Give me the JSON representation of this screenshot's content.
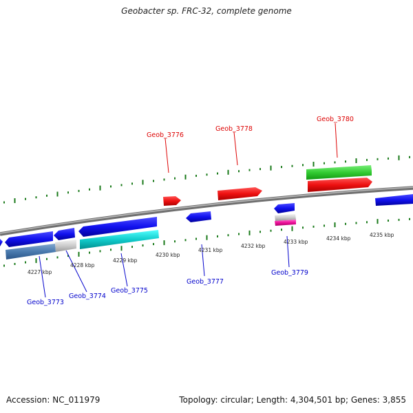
{
  "title": "Geobacter sp. FRC-32, complete genome",
  "footer": {
    "accession": "Accession: NC_011979",
    "summary": "Topology: circular; Length: 4,304,501 bp; Genes: 3,855"
  },
  "colors": {
    "forward_label": "#dd0000",
    "reverse_label": "#0000cc",
    "tick": "#1a7a1a",
    "backbone": "#808080"
  },
  "scale_labels": [
    "4227 kbp",
    "4228 kbp",
    "4229 kbp",
    "4230 kbp",
    "4231 kbp",
    "4232 kbp",
    "4233 kbp",
    "4234 kbp",
    "4235 kbp"
  ],
  "gene_labels": {
    "forward": [
      "Geob_3776",
      "Geob_3778",
      "Geob_3780"
    ],
    "reverse": [
      "Geob_3773",
      "Geob_3774",
      "Geob_3775",
      "Geob_3777",
      "Geob_3779"
    ]
  }
}
